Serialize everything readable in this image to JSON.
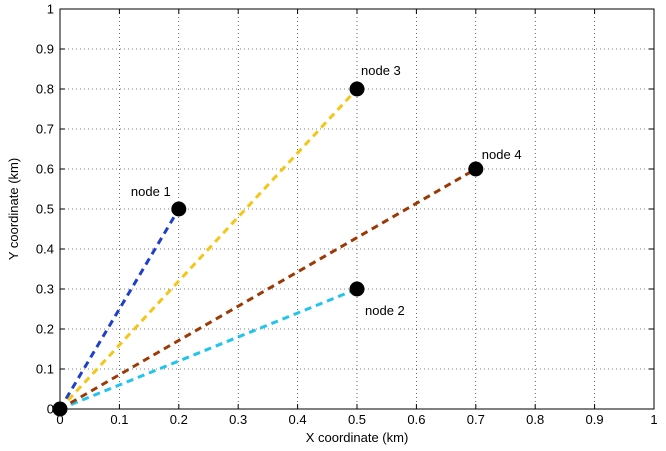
{
  "chart_data": {
    "type": "scatter",
    "title": "",
    "xlabel": "X coordinate (km)",
    "ylabel": "Y coordinate (km)",
    "xlim": [
      0,
      1
    ],
    "ylim": [
      0,
      1
    ],
    "grid": true,
    "xticks": [
      "0",
      "0.1",
      "0.2",
      "0.3",
      "0.4",
      "0.5",
      "0.6",
      "0.7",
      "0.8",
      "0.9",
      "1"
    ],
    "yticks": [
      "0",
      "0.1",
      "0.2",
      "0.3",
      "0.4",
      "0.5",
      "0.6",
      "0.7",
      "0.8",
      "0.9",
      "1"
    ],
    "origin": {
      "x": 0,
      "y": 0
    },
    "nodes": [
      {
        "label": "node 1",
        "x": 0.2,
        "y": 0.5,
        "line_color": "#1f3fc8"
      },
      {
        "label": "node 2",
        "x": 0.5,
        "y": 0.3,
        "line_color": "#22c4ee"
      },
      {
        "label": "node 3",
        "x": 0.5,
        "y": 0.8,
        "line_color": "#f5c518"
      },
      {
        "label": "node 4",
        "x": 0.7,
        "y": 0.6,
        "line_color": "#9c3a06"
      }
    ],
    "marker_color": "#000000"
  }
}
